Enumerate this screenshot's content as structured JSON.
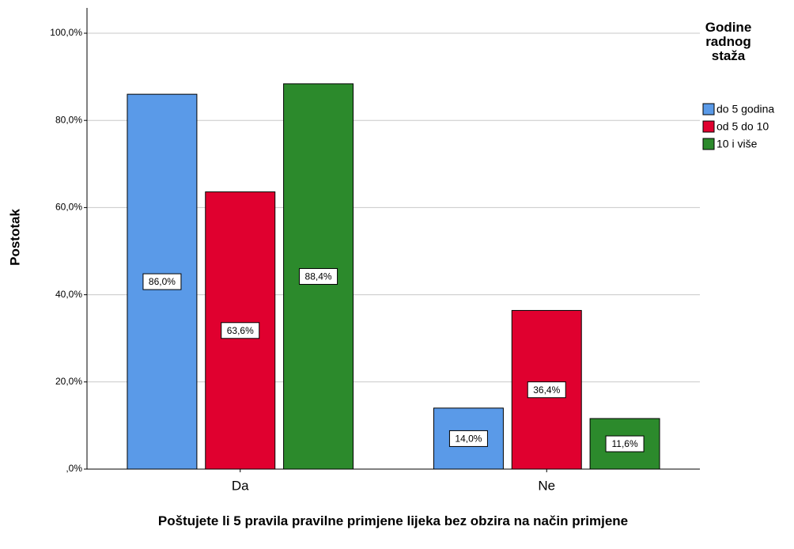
{
  "chart_data": {
    "type": "bar",
    "categories": [
      "Da",
      "Ne"
    ],
    "series": [
      {
        "name": "do 5 godina",
        "color": "#5a9ae8",
        "values": [
          86.0,
          14.0
        ],
        "value_labels": [
          "86,0%",
          "14,0%"
        ]
      },
      {
        "name": "od 5 do 10",
        "color": "#e0002f",
        "values": [
          63.6,
          36.4
        ],
        "value_labels": [
          "63,6%",
          "36,4%"
        ]
      },
      {
        "name": "10 i više",
        "color": "#2c8a2c",
        "values": [
          88.4,
          11.6
        ],
        "value_labels": [
          "88,4%",
          "11,6%"
        ]
      }
    ],
    "x_label": "Poštujete li 5 pravila pravilne primjene lijeka bez obzira na način primjene",
    "y_label": "Postotak",
    "legend_title": "Godine radnog staža",
    "legend_position": "right",
    "ylim": [
      0,
      100
    ],
    "yticks": [
      {
        "value": 0,
        "label": ",0%"
      },
      {
        "value": 20,
        "label": "20,0%"
      },
      {
        "value": 40,
        "label": "40,0%"
      },
      {
        "value": 60,
        "label": "60,0%"
      },
      {
        "value": 80,
        "label": "80,0%"
      },
      {
        "value": 100,
        "label": "100,0%"
      }
    ],
    "grid": true
  }
}
